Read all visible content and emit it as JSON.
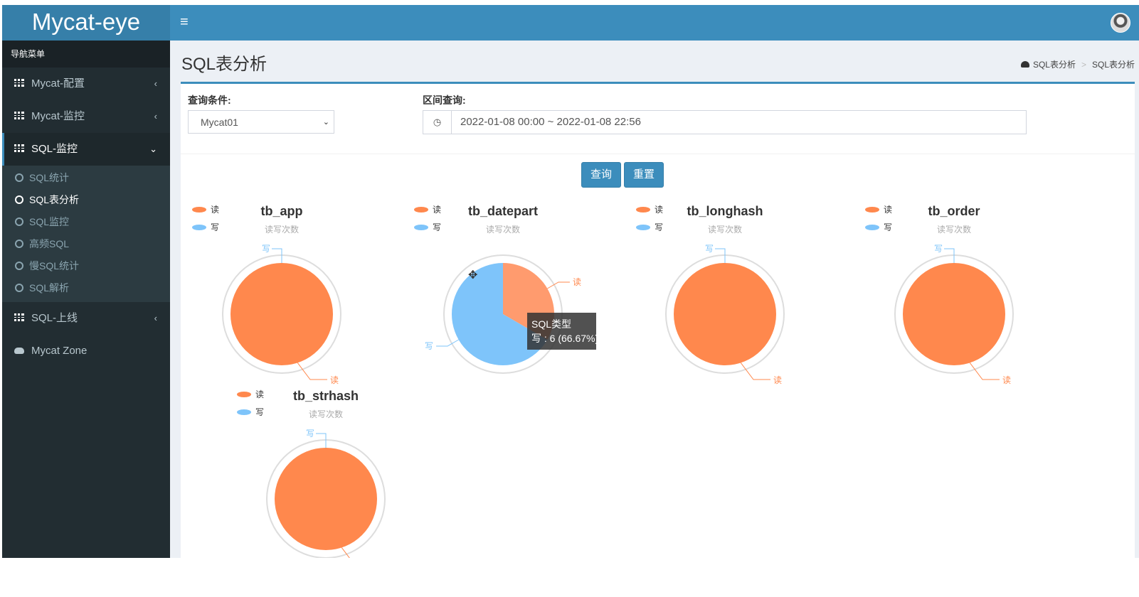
{
  "app": {
    "logo": "Mycat-eye",
    "menu_toggle": "≡"
  },
  "sidebar": {
    "header": "导航菜单",
    "items": [
      {
        "label": "Mycat-配置",
        "chevron": "‹"
      },
      {
        "label": "Mycat-监控",
        "chevron": "‹"
      },
      {
        "label": "SQL-监控",
        "chevron": "⌄"
      },
      {
        "label": "SQL-上线",
        "chevron": "‹"
      },
      {
        "label": "Mycat Zone"
      }
    ],
    "sub_items": [
      "SQL统计",
      "SQL表分析",
      "SQL监控",
      "高频SQL",
      "慢SQL统计",
      "SQL解析"
    ]
  },
  "page": {
    "title": "SQL表分析",
    "breadcrumb": [
      "SQL表分析",
      "SQL表分析"
    ]
  },
  "form": {
    "query_label": "查询条件:",
    "select_value": "Mycat01",
    "range_label": "区间查询:",
    "range_value": "2022-01-08 00:00 ~ 2022-01-08 22:56",
    "query_button": "查询",
    "reset_button": "重置"
  },
  "colors": {
    "read": "#ff884d",
    "read_highlight": "#ff9b6e",
    "write": "#7ec4fa",
    "accent": "#3c8dbc"
  },
  "chart_data": [
    {
      "type": "pie",
      "title": "tb_app",
      "subtitle": "读写次数",
      "legend": [
        "读",
        "写"
      ],
      "slices": [
        {
          "name": "读",
          "value": 1
        },
        {
          "name": "写",
          "value": 0
        }
      ]
    },
    {
      "type": "pie",
      "title": "tb_datepart",
      "subtitle": "读写次数",
      "legend": [
        "读",
        "写"
      ],
      "slices": [
        {
          "name": "读",
          "value": 3
        },
        {
          "name": "写",
          "value": 6
        }
      ],
      "tooltip": {
        "title": "SQL类型",
        "text": "写 : 6 (66.67%)"
      }
    },
    {
      "type": "pie",
      "title": "tb_longhash",
      "subtitle": "读写次数",
      "legend": [
        "读",
        "写"
      ],
      "slices": [
        {
          "name": "读",
          "value": 1
        },
        {
          "name": "写",
          "value": 0
        }
      ]
    },
    {
      "type": "pie",
      "title": "tb_order",
      "subtitle": "读写次数",
      "legend": [
        "读",
        "写"
      ],
      "slices": [
        {
          "name": "读",
          "value": 1
        },
        {
          "name": "写",
          "value": 0
        }
      ]
    },
    {
      "type": "pie",
      "title": "tb_strhash",
      "subtitle": "读写次数",
      "legend": [
        "读",
        "写"
      ],
      "slices": [
        {
          "name": "读",
          "value": 1
        },
        {
          "name": "写",
          "value": 0
        }
      ]
    }
  ]
}
